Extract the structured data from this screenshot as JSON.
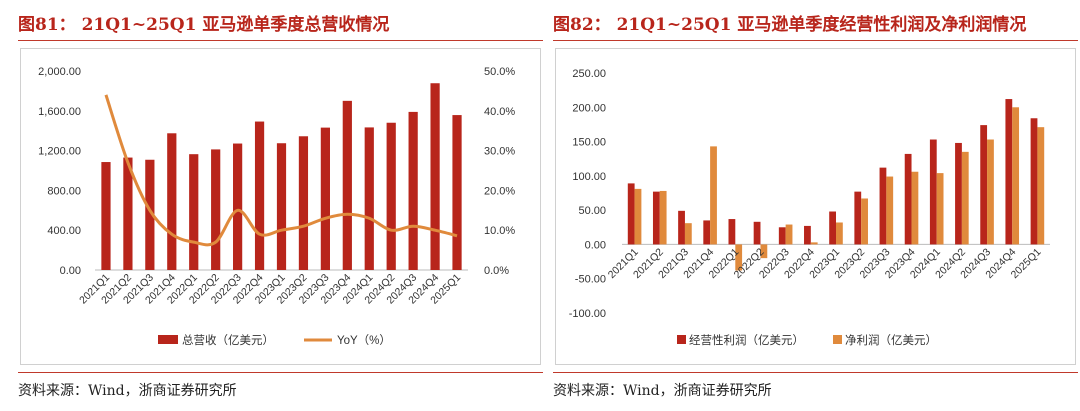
{
  "left": {
    "title": "图81：  21Q1~25Q1 亚马逊单季度总营收情况",
    "source": "资料来源：Wind，浙商证券研究所",
    "chart_data": {
      "type": "bar",
      "categories": [
        "2021Q1",
        "2021Q2",
        "2021Q3",
        "2021Q4",
        "2022Q1",
        "2022Q2",
        "2022Q3",
        "2022Q4",
        "2023Q1",
        "2023Q2",
        "2023Q3",
        "2023Q4",
        "2024Q1",
        "2024Q2",
        "2024Q3",
        "2024Q4",
        "2025Q1"
      ],
      "series": [
        {
          "name": "总营收（亿美元）",
          "type": "bar",
          "axis": "left",
          "color": "#b8251b",
          "values": [
            1085,
            1130,
            1108,
            1374,
            1164,
            1212,
            1271,
            1492,
            1274,
            1344,
            1431,
            1700,
            1433,
            1480,
            1589,
            1877,
            1557
          ]
        },
        {
          "name": "YoY（%）",
          "type": "line",
          "axis": "right",
          "color": "#e08a3c",
          "values": [
            44,
            27,
            15,
            9,
            7,
            7,
            15,
            9,
            10,
            11,
            13,
            14,
            13,
            10,
            11,
            10,
            8.6
          ]
        }
      ],
      "y_left": {
        "min": 0,
        "max": 2000,
        "ticks": [
          "0.00",
          "400.00",
          "800.00",
          "1,200.00",
          "1,600.00",
          "2,000.00"
        ]
      },
      "y_right": {
        "min": 0,
        "max": 50,
        "ticks": [
          "0.0%",
          "10.0%",
          "20.0%",
          "30.0%",
          "40.0%",
          "50.0%"
        ]
      },
      "legend": "bottom"
    }
  },
  "right": {
    "title": "图82：  21Q1~25Q1 亚马逊单季度经营性利润及净利润情况",
    "source": "资料来源：Wind，浙商证券研究所",
    "chart_data": {
      "type": "bar",
      "categories": [
        "2021Q1",
        "2021Q2",
        "2021Q3",
        "2021Q4",
        "2022Q1",
        "2022Q2",
        "2022Q3",
        "2022Q4",
        "2023Q1",
        "2023Q2",
        "2023Q3",
        "2023Q4",
        "2024Q1",
        "2024Q2",
        "2024Q3",
        "2024Q4",
        "2025Q1"
      ],
      "series": [
        {
          "name": "经营性利润（亿美元）",
          "color": "#b8251b",
          "values": [
            89,
            77,
            49,
            35,
            37,
            33,
            25,
            27,
            48,
            77,
            112,
            132,
            153,
            148,
            174,
            212,
            184
          ]
        },
        {
          "name": "净利润（亿美元）",
          "color": "#e08a3c",
          "values": [
            81,
            78,
            31,
            143,
            -38,
            -20,
            29,
            3,
            32,
            67,
            99,
            106,
            104,
            135,
            153,
            200,
            171
          ]
        }
      ],
      "y": {
        "min": -100,
        "max": 250,
        "ticks": [
          "-100.00",
          "-50.00",
          "0.00",
          "50.00",
          "100.00",
          "150.00",
          "200.00",
          "250.00"
        ]
      },
      "legend": "bottom"
    }
  }
}
